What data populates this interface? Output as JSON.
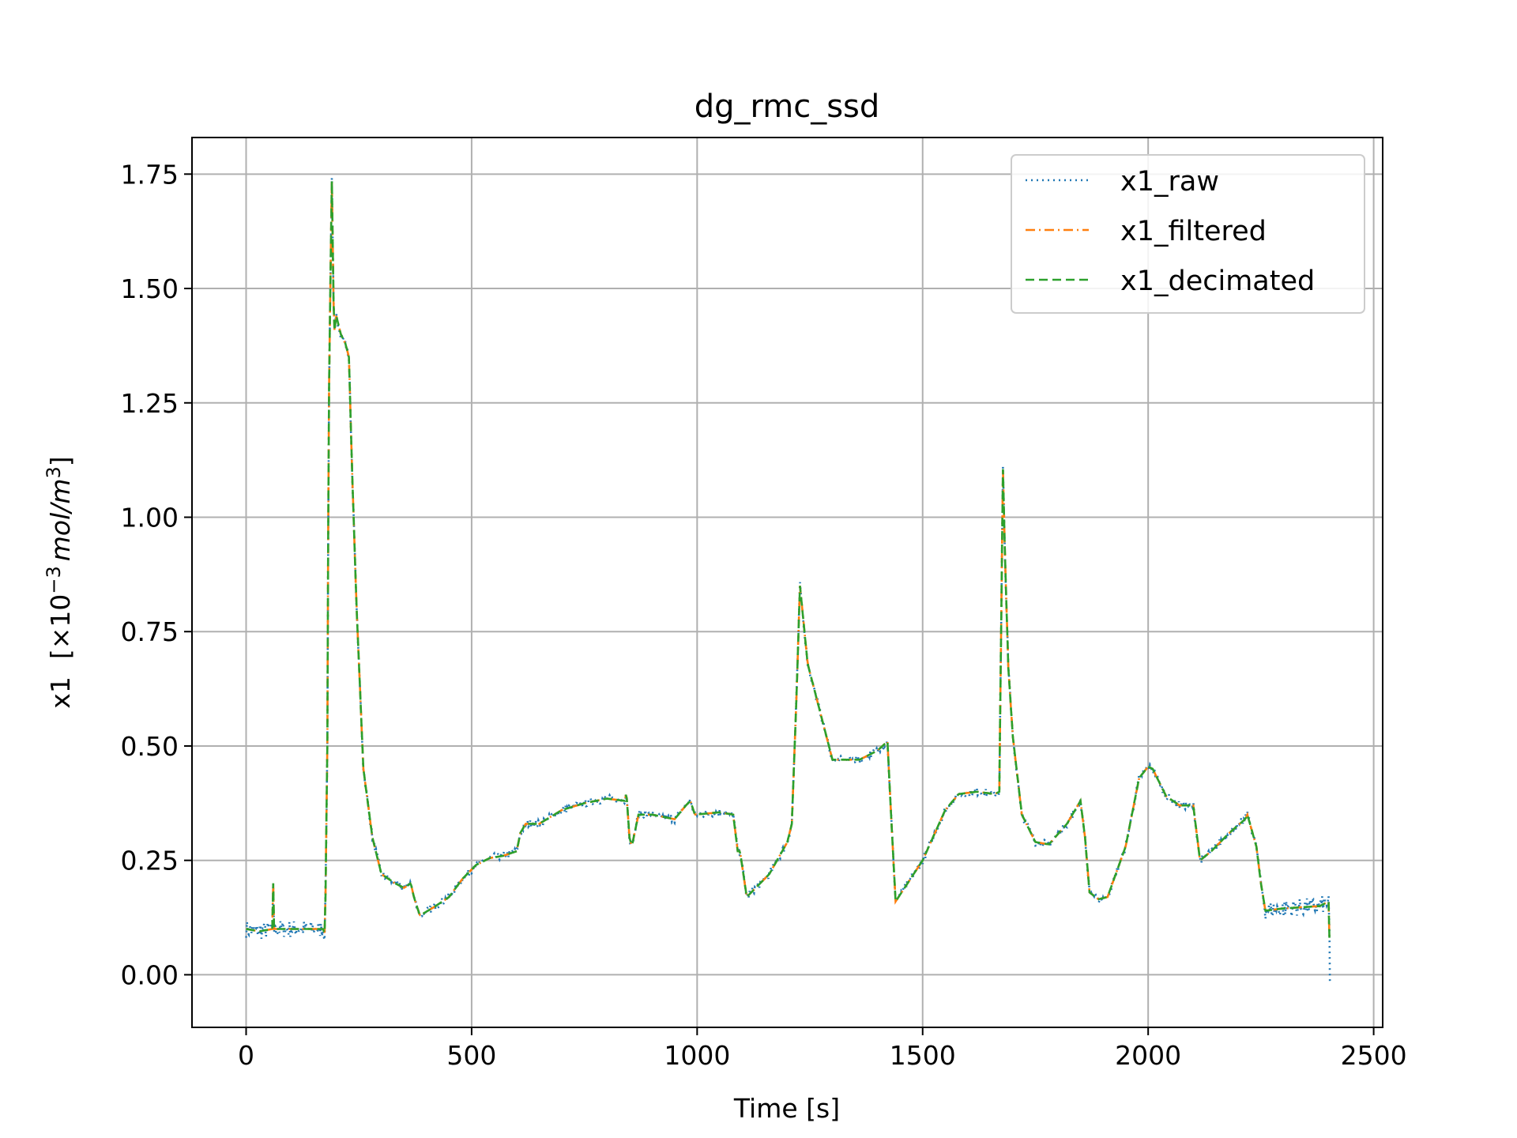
{
  "chart_data": {
    "type": "line",
    "title": "dg_rmc_ssd",
    "xlabel": "Time [s]",
    "ylabel_var": "x1",
    "ylabel_unit_pre": "[×10",
    "ylabel_unit_exp": "−3",
    "ylabel_unit_mid": "mol/m",
    "ylabel_unit_sup": "3",
    "ylabel_unit_post": "]",
    "xlim": [
      -120,
      2520
    ],
    "ylim": [
      -0.115,
      1.83
    ],
    "xticks": [
      0,
      500,
      1000,
      1500,
      2000,
      2500
    ],
    "xtick_labels": [
      "0",
      "500",
      "1000",
      "1500",
      "2000",
      "2500"
    ],
    "yticks": [
      0.0,
      0.25,
      0.5,
      0.75,
      1.0,
      1.25,
      1.5,
      1.75
    ],
    "ytick_labels": [
      "0.00",
      "0.25",
      "0.50",
      "0.75",
      "1.00",
      "1.25",
      "1.50",
      "1.75"
    ],
    "grid": true,
    "legend_position": "top-right",
    "series": [
      {
        "name": "x1_raw",
        "color": "#1f77b4",
        "style": "dotted",
        "noise": 0.012
      },
      {
        "name": "x1_filtered",
        "color": "#ff7f0e",
        "style": "dashdot",
        "noise": 0.0
      },
      {
        "name": "x1_decimated",
        "color": "#2ca02c",
        "style": "dashed",
        "noise": 0.0
      }
    ],
    "x": [
      0,
      30,
      58,
      60,
      62,
      90,
      120,
      150,
      170,
      175,
      180,
      183,
      186,
      190,
      195,
      200,
      210,
      220,
      228,
      235,
      245,
      260,
      280,
      300,
      330,
      350,
      365,
      372,
      385,
      395,
      420,
      450,
      480,
      510,
      540,
      570,
      600,
      608,
      620,
      650,
      700,
      750,
      800,
      840,
      843,
      850,
      855,
      870,
      900,
      950,
      975,
      985,
      995,
      1050,
      1080,
      1090,
      1095,
      1110,
      1160,
      1200,
      1210,
      1220,
      1228,
      1245,
      1300,
      1360,
      1400,
      1422,
      1430,
      1440,
      1460,
      1500,
      1550,
      1580,
      1620,
      1660,
      1670,
      1678,
      1683,
      1690,
      1700,
      1720,
      1750,
      1780,
      1820,
      1850,
      1860,
      1870,
      1890,
      1910,
      1950,
      1980,
      2000,
      2010,
      2040,
      2070,
      2100,
      2115,
      2140,
      2180,
      2215,
      2220,
      2240,
      2250,
      2260,
      2300,
      2380,
      2400,
      2402
    ],
    "y": [
      0.1,
      0.095,
      0.1,
      0.2,
      0.1,
      0.1,
      0.1,
      0.1,
      0.1,
      0.09,
      0.5,
      1.2,
      1.45,
      1.735,
      1.4,
      1.44,
      1.4,
      1.38,
      1.35,
      1.1,
      0.8,
      0.45,
      0.3,
      0.22,
      0.2,
      0.19,
      0.2,
      0.17,
      0.13,
      0.135,
      0.15,
      0.17,
      0.21,
      0.24,
      0.255,
      0.26,
      0.27,
      0.31,
      0.33,
      0.33,
      0.36,
      0.375,
      0.385,
      0.38,
      0.4,
      0.3,
      0.28,
      0.35,
      0.35,
      0.34,
      0.37,
      0.38,
      0.35,
      0.355,
      0.35,
      0.27,
      0.27,
      0.17,
      0.22,
      0.29,
      0.33,
      0.6,
      0.85,
      0.68,
      0.47,
      0.47,
      0.49,
      0.51,
      0.35,
      0.16,
      0.19,
      0.25,
      0.36,
      0.395,
      0.4,
      0.395,
      0.4,
      1.105,
      0.9,
      0.67,
      0.52,
      0.35,
      0.29,
      0.285,
      0.33,
      0.38,
      0.3,
      0.18,
      0.165,
      0.17,
      0.28,
      0.43,
      0.455,
      0.45,
      0.39,
      0.37,
      0.37,
      0.25,
      0.27,
      0.31,
      0.34,
      0.35,
      0.28,
      0.2,
      0.14,
      0.145,
      0.15,
      0.16,
      0.08
    ]
  }
}
